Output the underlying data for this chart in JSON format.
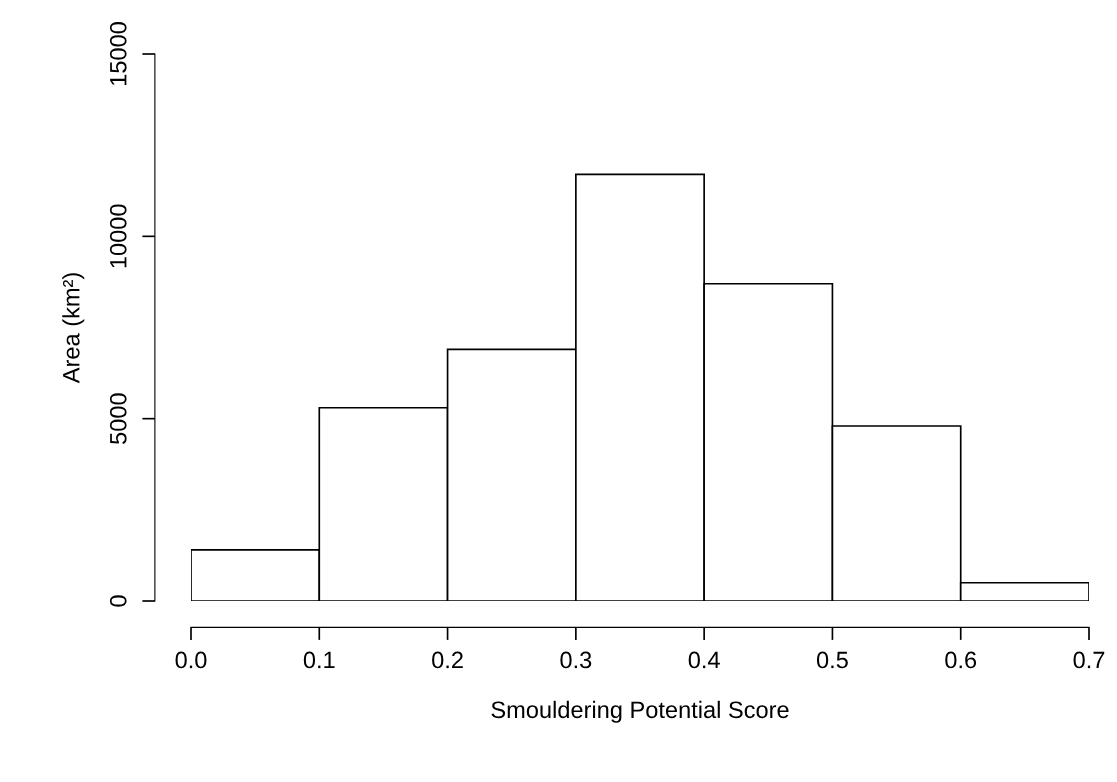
{
  "chart_data": {
    "type": "histogram",
    "xlabel": "Smouldering Potential Score",
    "ylabel": "Area (km²)",
    "bins": [
      0.0,
      0.1,
      0.2,
      0.3,
      0.4,
      0.5,
      0.6,
      0.7
    ],
    "values": [
      1400,
      5300,
      6900,
      11700,
      8700,
      4800,
      500
    ],
    "color": "#ffffff",
    "xlim": [
      0.0,
      0.7
    ],
    "ylim": [
      0,
      15000
    ],
    "xticks": [
      {
        "value": 0.0,
        "label": "0.0"
      },
      0.1,
      0.2,
      0.3,
      0.4,
      0.5,
      0.6,
      0.7
    ],
    "yticks": [
      0,
      5000,
      10000,
      15000
    ],
    "grid": false
  }
}
